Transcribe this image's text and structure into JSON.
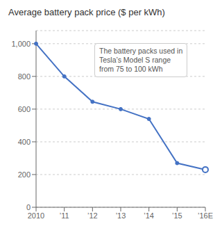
{
  "chart_data": {
    "type": "line",
    "title": "Average battery pack price ($ per kWh)",
    "categories": [
      "2010",
      "’11",
      "’12",
      "’13",
      "’14",
      "’15",
      "’16E"
    ],
    "values": [
      1000,
      800,
      645,
      600,
      540,
      270,
      230
    ],
    "color": "#4472C4",
    "marker": "circle",
    "ylim": [
      0,
      1080
    ],
    "yticks": [
      0,
      200,
      400,
      600,
      800,
      {
        "value": 1000,
        "label": "1,000"
      }
    ],
    "grid": true,
    "annotation": "The battery packs used in\nTesla’s Model S range\nfrom 75 to 100 kWh"
  }
}
